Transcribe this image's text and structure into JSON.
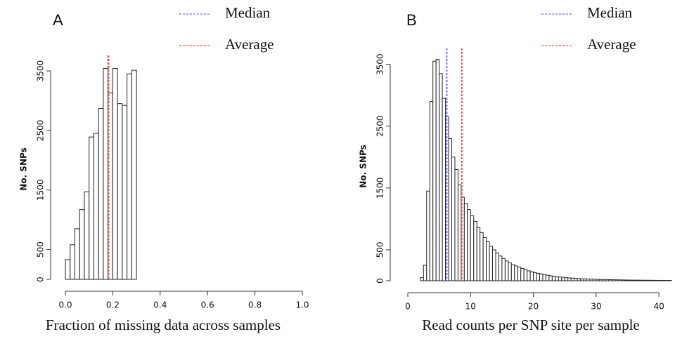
{
  "chart_data": [
    {
      "type": "histogram",
      "panel": "A",
      "x_label": "Fraction of missing data across samples",
      "y_label": "No. SNPs",
      "bins": [
        0,
        0.02,
        0.04,
        0.06,
        0.08,
        0.1,
        0.12,
        0.14,
        0.16,
        0.18,
        0.2,
        0.22,
        0.24,
        0.26,
        0.28,
        0.3
      ],
      "values": [
        330,
        580,
        850,
        1170,
        1470,
        2390,
        2450,
        2870,
        3540,
        3130,
        3540,
        2950,
        2920,
        3450,
        3510
      ],
      "color": "#ffffff",
      "edge_color": "#222222",
      "xlim": [
        0,
        1
      ],
      "ylim": [
        0,
        3700
      ],
      "xticks": [
        {
          "value": 0,
          "label": "0.0"
        },
        0.2,
        0.4,
        0.6,
        0.8,
        {
          "value": 1,
          "label": "1.0"
        }
      ],
      "yticks": [
        0,
        500,
        1500,
        2500,
        3500
      ],
      "median": {
        "name": "Median",
        "value": 0.18,
        "color": "#6a6aff"
      },
      "average": {
        "name": "Average",
        "value": 0.182,
        "color": "#ff4a4a"
      }
    },
    {
      "type": "histogram",
      "panel": "B",
      "x_label": "Read counts per SNP site per sample",
      "y_label": "No. SNPs",
      "bins": [
        2,
        2.5,
        3,
        3.5,
        4,
        4.5,
        5,
        5.5,
        6,
        6.5,
        7,
        7.5,
        8,
        8.5,
        9,
        9.5,
        10,
        10.5,
        11,
        11.5,
        12,
        12.5,
        13,
        13.5,
        14,
        14.5,
        15,
        15.5,
        16,
        16.5,
        17,
        17.5,
        18,
        18.5,
        19,
        19.5,
        20,
        20.5,
        21,
        21.5,
        22,
        22.5,
        23,
        23.5,
        24,
        24.5,
        25,
        25.5,
        26,
        26.5,
        27,
        27.5,
        28,
        28.5,
        29,
        29.5,
        30,
        30.5,
        31,
        31.5,
        32,
        32.5,
        33,
        33.5,
        34,
        34.5,
        35,
        35.5,
        36,
        36.5,
        37,
        37.5,
        38,
        38.5,
        39,
        39.5,
        40,
        40.5,
        41,
        41.5,
        42
      ],
      "values": [
        50,
        250,
        1450,
        2900,
        3550,
        3580,
        3350,
        2950,
        2650,
        2300,
        2000,
        1800,
        1550,
        1350,
        1250,
        1150,
        1050,
        960,
        860,
        780,
        700,
        630,
        560,
        500,
        450,
        400,
        360,
        320,
        290,
        260,
        240,
        220,
        200,
        180,
        160,
        145,
        130,
        120,
        110,
        100,
        90,
        80,
        72,
        65,
        60,
        55,
        50,
        45,
        42,
        38,
        35,
        32,
        30,
        28,
        26,
        24,
        22,
        20,
        19,
        18,
        17,
        16,
        15,
        14,
        13,
        12,
        11,
        10,
        10,
        9,
        9,
        8,
        8,
        7,
        7,
        6,
        6,
        5,
        5,
        5
      ],
      "color": "#ffffff",
      "edge_color": "#222222",
      "xlim": [
        0,
        42
      ],
      "ylim": [
        0,
        3700
      ],
      "xticks": [
        0,
        10,
        20,
        30,
        40
      ],
      "yticks": [
        0,
        500,
        1500,
        2500,
        3500
      ],
      "median": {
        "name": "Median",
        "value": 6.2,
        "color": "#6a6aff"
      },
      "average": {
        "name": "Average",
        "value": 8.6,
        "color": "#ff4a4a"
      }
    }
  ]
}
